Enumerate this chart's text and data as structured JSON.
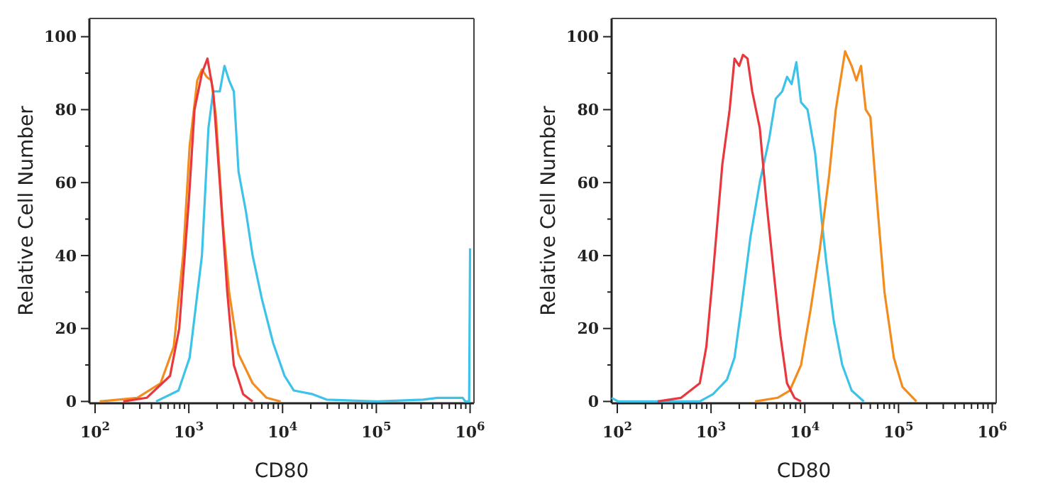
{
  "chart_data": [
    {
      "type": "line",
      "xlabel": "CD80",
      "ylabel": "Relative Cell Number",
      "log": "x",
      "xlim": [
        87,
        1100000
      ],
      "ylim": [
        -0.5,
        105
      ],
      "grid": false,
      "marker": "none",
      "line_style": "solid",
      "xticks": [
        {
          "value": 100,
          "label": "10$^{2}$"
        },
        {
          "value": 200,
          "label": null
        },
        {
          "value": 300,
          "label": null
        },
        {
          "value": 400,
          "label": null
        },
        {
          "value": 500,
          "label": null
        },
        {
          "value": 600,
          "label": null
        },
        {
          "value": 700,
          "label": null
        },
        {
          "value": 800,
          "label": null
        },
        {
          "value": 900,
          "label": null
        },
        {
          "value": 1000,
          "label": "10$^{3}$"
        },
        {
          "value": 2000,
          "label": null
        },
        {
          "value": 3000,
          "label": null
        },
        {
          "value": 4000,
          "label": null
        },
        {
          "value": 5000,
          "label": null
        },
        {
          "value": 6000,
          "label": null
        },
        {
          "value": 7000,
          "label": null
        },
        {
          "value": 8000,
          "label": null
        },
        {
          "value": 9000,
          "label": null
        },
        {
          "value": 10000,
          "label": "10$^{4}$"
        },
        {
          "value": 20000,
          "label": null
        },
        {
          "value": 30000,
          "label": null
        },
        {
          "value": 40000,
          "label": null
        },
        {
          "value": 50000,
          "label": null
        },
        {
          "value": 60000,
          "label": null
        },
        {
          "value": 70000,
          "label": null
        },
        {
          "value": 80000,
          "label": null
        },
        {
          "value": 90000,
          "label": null
        },
        {
          "value": 100000,
          "label": "10$^{5}$"
        },
        {
          "value": 200000,
          "label": null
        },
        {
          "value": 300000,
          "label": null
        },
        {
          "value": 400000,
          "label": null
        },
        {
          "value": 500000,
          "label": null
        },
        {
          "value": 600000,
          "label": null
        },
        {
          "value": 700000,
          "label": null
        },
        {
          "value": 800000,
          "label": null
        },
        {
          "value": 900000,
          "label": null
        },
        {
          "value": 1000000,
          "label": "10$^{6}$"
        }
      ],
      "yticks": [
        0,
        {
          "value": 10,
          "label": null
        },
        20,
        {
          "value": 30,
          "label": null
        },
        40,
        {
          "value": 50,
          "label": null
        },
        60,
        {
          "value": 70,
          "label": null
        },
        80,
        {
          "value": 90,
          "label": null
        },
        100
      ],
      "series": [
        {
          "color": "#3ec3e8",
          "x": [
            447,
            776,
            1020,
            1380,
            1620,
            1820,
            2140,
            2400,
            2690,
            3020,
            3390,
            4070,
            4790,
            6030,
            7940,
            10500,
            13200,
            20900,
            29500,
            102000,
            316000,
            447000,
            832000,
            891000,
            977000,
            1000000
          ],
          "values": [
            0,
            3,
            12,
            40,
            75,
            85,
            85,
            92,
            88,
            85,
            63,
            52,
            40,
            28,
            16,
            7,
            3,
            2,
            0.5,
            0,
            0.5,
            1,
            1,
            0,
            0,
            42
          ]
        },
        {
          "color": "#f28c1e",
          "x": [
            112,
            282,
            500,
            690,
            870,
            1020,
            1230,
            1380,
            1550,
            1740,
            1950,
            2290,
            2690,
            3390,
            4790,
            6760,
            9550
          ],
          "values": [
            0,
            1,
            5,
            15,
            40,
            70,
            88,
            91,
            89,
            88,
            78,
            50,
            30,
            13,
            5,
            1,
            0
          ]
        },
        {
          "color": "#e8383d",
          "x": [
            200,
            355,
            630,
            790,
            1000,
            1150,
            1380,
            1580,
            1820,
            2140,
            2570,
            3020,
            3800,
            4790
          ],
          "values": [
            0,
            1,
            7,
            20,
            55,
            80,
            90,
            94,
            85,
            60,
            30,
            10,
            2,
            0
          ]
        }
      ]
    },
    {
      "type": "line",
      "xlabel": "CD80",
      "ylabel": "Relative Cell Number",
      "log": "x",
      "xlim": [
        87,
        1100000
      ],
      "ylim": [
        -0.5,
        105
      ],
      "grid": false,
      "marker": "none",
      "line_style": "solid",
      "xticks": [
        {
          "value": 100,
          "label": "10$^{2}$"
        },
        {
          "value": 200,
          "label": null
        },
        {
          "value": 300,
          "label": null
        },
        {
          "value": 400,
          "label": null
        },
        {
          "value": 500,
          "label": null
        },
        {
          "value": 600,
          "label": null
        },
        {
          "value": 700,
          "label": null
        },
        {
          "value": 800,
          "label": null
        },
        {
          "value": 900,
          "label": null
        },
        {
          "value": 1000,
          "label": "10$^{3}$"
        },
        {
          "value": 2000,
          "label": null
        },
        {
          "value": 3000,
          "label": null
        },
        {
          "value": 4000,
          "label": null
        },
        {
          "value": 5000,
          "label": null
        },
        {
          "value": 6000,
          "label": null
        },
        {
          "value": 7000,
          "label": null
        },
        {
          "value": 8000,
          "label": null
        },
        {
          "value": 9000,
          "label": null
        },
        {
          "value": 10000,
          "label": "10$^{4}$"
        },
        {
          "value": 20000,
          "label": null
        },
        {
          "value": 30000,
          "label": null
        },
        {
          "value": 40000,
          "label": null
        },
        {
          "value": 50000,
          "label": null
        },
        {
          "value": 60000,
          "label": null
        },
        {
          "value": 70000,
          "label": null
        },
        {
          "value": 80000,
          "label": null
        },
        {
          "value": 90000,
          "label": null
        },
        {
          "value": 100000,
          "label": "10$^{5}$"
        },
        {
          "value": 200000,
          "label": null
        },
        {
          "value": 300000,
          "label": null
        },
        {
          "value": 400000,
          "label": null
        },
        {
          "value": 500000,
          "label": null
        },
        {
          "value": 600000,
          "label": null
        },
        {
          "value": 700000,
          "label": null
        },
        {
          "value": 800000,
          "label": null
        },
        {
          "value": 900000,
          "label": null
        },
        {
          "value": 1000000,
          "label": "10$^{6}$"
        }
      ],
      "yticks": [
        0,
        {
          "value": 10,
          "label": null
        },
        20,
        {
          "value": 30,
          "label": null
        },
        40,
        {
          "value": 50,
          "label": null
        },
        60,
        {
          "value": 70,
          "label": null
        },
        80,
        {
          "value": 90,
          "label": null
        },
        100
      ],
      "series": [
        {
          "color": "#3ec3e8",
          "x": [
            87,
            102,
            759,
            1050,
            1480,
            1780,
            2090,
            2630,
            3310,
            4170,
            4900,
            5750,
            6460,
            7240,
            8130,
            9120,
            10700,
            12900,
            15100,
            17000,
            20400,
            25100,
            31600,
            42700
          ],
          "values": [
            1,
            0,
            0,
            2,
            6,
            12,
            25,
            45,
            60,
            72,
            83,
            85,
            89,
            87,
            93,
            82,
            80,
            68,
            50,
            38,
            22,
            10,
            3,
            0
          ]
        },
        {
          "color": "#f28c1e",
          "x": [
            2950,
            5130,
            6920,
            9120,
            11500,
            14500,
            18200,
            21400,
            26900,
            31600,
            35500,
            39800,
            44700,
            50100,
            58900,
            70800,
            89100,
            110000,
            155000
          ],
          "values": [
            0,
            1,
            3,
            10,
            25,
            42,
            62,
            80,
            96,
            92,
            88,
            92,
            80,
            78,
            55,
            30,
            12,
            4,
            0
          ]
        },
        {
          "color": "#e8383d",
          "x": [
            269,
            479,
            759,
            891,
            1050,
            1320,
            1580,
            1780,
            2000,
            2190,
            2450,
            2750,
            3310,
            3890,
            4680,
            5500,
            6460,
            7760,
            9120
          ],
          "values": [
            0,
            1,
            5,
            15,
            35,
            65,
            80,
            94,
            92,
            95,
            94,
            85,
            75,
            55,
            35,
            18,
            5,
            1,
            0
          ]
        }
      ]
    }
  ]
}
